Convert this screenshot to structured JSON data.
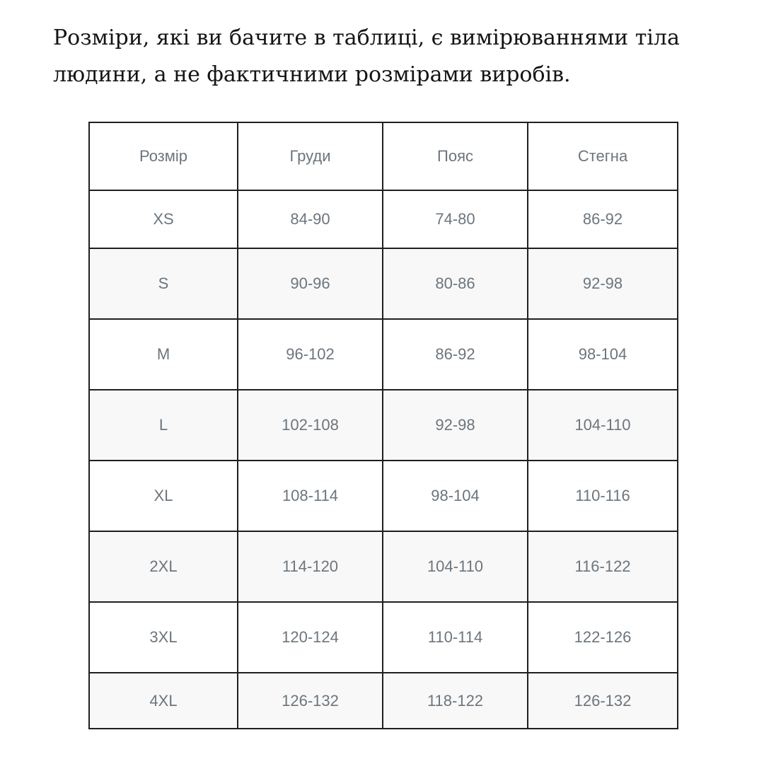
{
  "heading": {
    "lines": [
      "Розміри, які ви бачите в таблиці, є вимірюваннями тіла",
      "людини, а не фактичними розмірами виробів."
    ]
  },
  "table": {
    "headers": [
      "Розмір",
      "Груди",
      "Пояс",
      "Стегна"
    ],
    "rows": [
      {
        "size": "XS",
        "chest": "84-90",
        "waist": "74-80",
        "hips": "86-92"
      },
      {
        "size": "S",
        "chest": "90-96",
        "waist": "80-86",
        "hips": "92-98"
      },
      {
        "size": "M",
        "chest": "96-102",
        "waist": "86-92",
        "hips": "98-104"
      },
      {
        "size": "L",
        "chest": "102-108",
        "waist": "92-98",
        "hips": "104-110"
      },
      {
        "size": "XL",
        "chest": "108-114",
        "waist": "98-104",
        "hips": "110-116"
      },
      {
        "size": "2XL",
        "chest": "114-120",
        "waist": "104-110",
        "hips": "116-122"
      },
      {
        "size": "3XL",
        "chest": "120-124",
        "waist": "110-114",
        "hips": "122-126"
      },
      {
        "size": "4XL",
        "chest": "126-132",
        "waist": "118-122",
        "hips": "126-132"
      }
    ]
  },
  "colors": {
    "table_border": "#1f1f1f",
    "cell_text": "#6c757d",
    "stripe_background": "#f8f8f8",
    "heading_text": "#141414",
    "page_background": "#ffffff"
  }
}
